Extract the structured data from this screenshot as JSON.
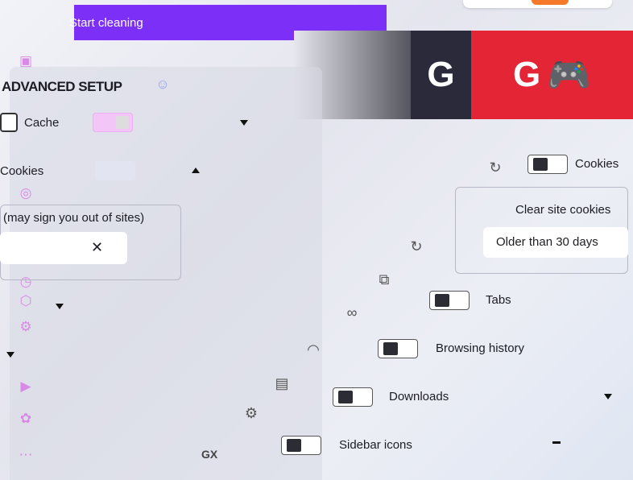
{
  "header": {
    "start_button": "Start cleaning"
  },
  "banner": {
    "logo_left": "G",
    "logo_right": "G"
  },
  "advanced": {
    "title": "ADVANCED SETUP",
    "cache_label": "Cache",
    "cookies_label": "Cookies",
    "cookies_note": "(may sign you out of sites)"
  },
  "right": {
    "cookies_label": "Cookies",
    "clear_site_cookies": "Clear site cookies",
    "age_select": "Older than 30 days",
    "items": [
      {
        "label": "Tabs"
      },
      {
        "label": "Browsing history"
      },
      {
        "label": "Downloads"
      },
      {
        "label": "Sidebar icons"
      }
    ]
  },
  "footer": {
    "gx": "GX"
  },
  "colors": {
    "accent": "#7b2ff7",
    "pink": "#f3c6f7",
    "red": "#e42535"
  }
}
